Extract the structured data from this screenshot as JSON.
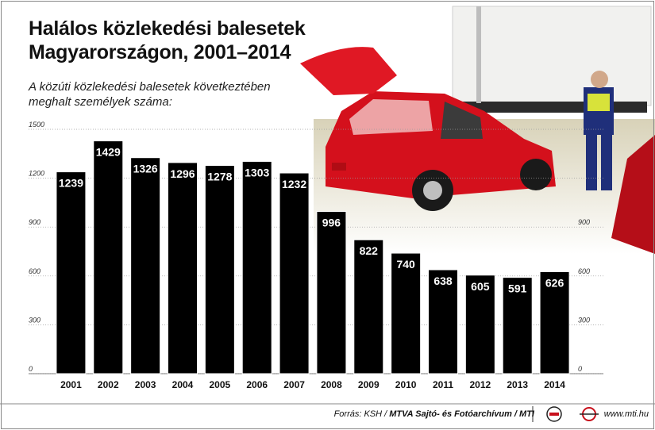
{
  "title_line1": "Halálos közlekedési balesetek",
  "title_line2": "Magyarországon, 2001–2014",
  "subtitle_line1": "A közúti közlekedési balesetek következtében",
  "subtitle_line2": "meghalt személyek száma:",
  "footer": {
    "source_prefix": "Forrás: KSH / ",
    "source_agency": "MTVA Sajtó- és Fotóarchívum / MTI",
    "url": "www.mti.hu"
  },
  "chart_data": {
    "type": "bar",
    "categories": [
      "2001",
      "2002",
      "2003",
      "2004",
      "2005",
      "2006",
      "2007",
      "2008",
      "2009",
      "2010",
      "2011",
      "2012",
      "2013",
      "2014"
    ],
    "values": [
      1239,
      1429,
      1326,
      1296,
      1278,
      1303,
      1232,
      996,
      822,
      740,
      638,
      605,
      591,
      626
    ],
    "value_labels": [
      "1239",
      "1429",
      "1326",
      "1296",
      "1278",
      "1303",
      "1232",
      "996",
      "822",
      "740",
      "638",
      "605",
      "591",
      "626"
    ],
    "ylim": [
      0,
      1500
    ],
    "left_ticks": [
      "0",
      "300",
      "600",
      "900",
      "1200",
      "1500"
    ],
    "right_ticks": [
      "0",
      "300",
      "600",
      "900"
    ],
    "grid": true,
    "bar_color": "#000000",
    "label_color": "#ffffff"
  }
}
